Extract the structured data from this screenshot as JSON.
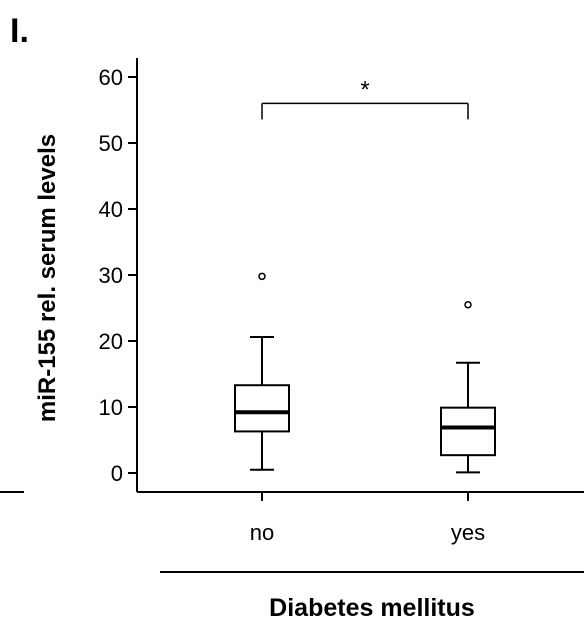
{
  "panel_label": "I.",
  "chart_data": {
    "type": "boxplot",
    "ylabel": "miR-155 rel. serum levels",
    "xlabel": "Diabetes mellitus",
    "ylim": [
      0,
      60
    ],
    "yticks": [
      0,
      10,
      20,
      30,
      40,
      50,
      60
    ],
    "categories": [
      "no",
      "yes"
    ],
    "boxes": [
      {
        "category": "no",
        "whisker_low": 0.5,
        "q1": 6.3,
        "median": 9.2,
        "q3": 13.3,
        "whisker_high": 20.6,
        "outliers": [
          29.8
        ]
      },
      {
        "category": "yes",
        "whisker_low": 0.1,
        "q1": 2.7,
        "median": 6.9,
        "q3": 9.9,
        "whisker_high": 16.7,
        "outliers": [
          25.5
        ]
      }
    ],
    "significance": {
      "between": [
        "no",
        "yes"
      ],
      "label": "*",
      "y": 56
    },
    "grid": false,
    "legend": false
  }
}
